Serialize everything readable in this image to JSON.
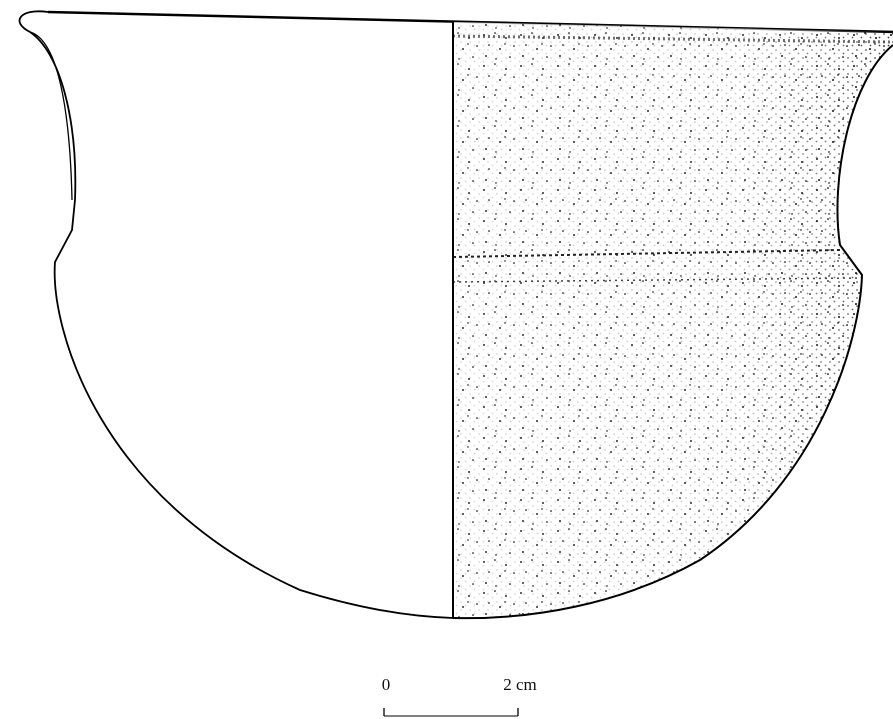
{
  "scale_bar": {
    "start_label": "0",
    "end_label": "2 cm"
  }
}
